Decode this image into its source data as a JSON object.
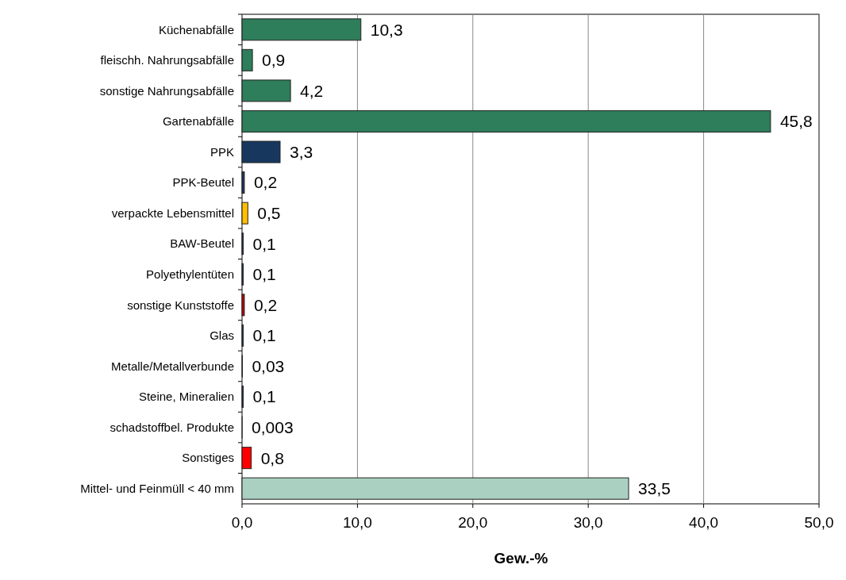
{
  "chart_data": {
    "type": "bar",
    "orientation": "horizontal",
    "xlabel": "Gew.-%",
    "categories": [
      "Küchenabfälle",
      "fleischh. Nahrungsabfälle",
      "sonstige Nahrungsabfälle",
      "Gartenabfälle",
      "PPK",
      "PPK-Beutel",
      "verpackte Lebensmittel",
      "BAW-Beutel",
      "Polyethylentüten",
      "sonstige Kunststoffe",
      "Glas",
      "Metalle/Metallverbunde",
      "Steine, Mineralien",
      "schadstoffbel. Produkte",
      "Sonstiges",
      "Mittel- und Feinmüll < 40 mm"
    ],
    "values": [
      10.3,
      0.9,
      4.2,
      45.8,
      3.3,
      0.2,
      0.5,
      0.1,
      0.1,
      0.2,
      0.1,
      0.03,
      0.1,
      0.003,
      0.8,
      33.5
    ],
    "value_labels": [
      "10,3",
      "0,9",
      "4,2",
      "45,8",
      "3,3",
      "0,2",
      "0,5",
      "0,1",
      "0,1",
      "0,2",
      "0,1",
      "0,03",
      "0,1",
      "0,003",
      "0,8",
      "33,5"
    ],
    "colors": [
      "#2e7d5b",
      "#2e7d5b",
      "#2e7d5b",
      "#2e7d5b",
      "#17375e",
      "#17375e",
      "#ffc000",
      "#1f3864",
      "#1f3864",
      "#c00000",
      "#1f3864",
      "#1f3864",
      "#1f3864",
      "#1f3864",
      "#ff0000",
      "#a9d0c0"
    ],
    "xlim": [
      0,
      50
    ],
    "xticks": [
      {
        "value": 0,
        "label": "0,0"
      },
      {
        "value": 10,
        "label": "10,0"
      },
      {
        "value": 20,
        "label": "20,0"
      },
      {
        "value": 30,
        "label": "30,0"
      },
      {
        "value": 40,
        "label": "40,0"
      },
      {
        "value": 50,
        "label": "50,0"
      }
    ],
    "grid": "x"
  }
}
